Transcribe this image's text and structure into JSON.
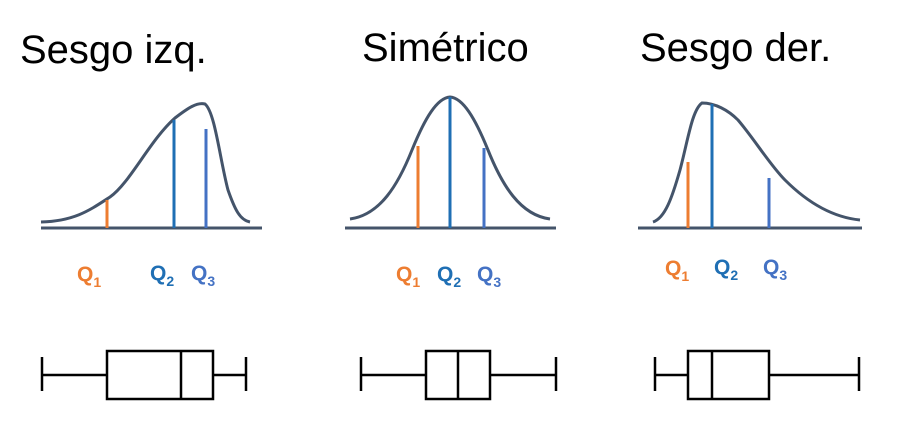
{
  "colors": {
    "curve": "#44546A",
    "q1": "#ED7D31",
    "q2": "#1F6FB4",
    "q3": "#4472C4",
    "box": "#000000"
  },
  "panels": [
    {
      "title": "Sesgo izq.",
      "labels": {
        "q1": "Q",
        "q1_sub": "1",
        "q2": "Q",
        "q2_sub": "2",
        "q3": "Q",
        "q3_sub": "3"
      }
    },
    {
      "title": "Simétrico",
      "labels": {
        "q1": "Q",
        "q1_sub": "1",
        "q2": "Q",
        "q2_sub": "2",
        "q3": "Q",
        "q3_sub": "3"
      }
    },
    {
      "title": "Sesgo der.",
      "labels": {
        "q1": "Q",
        "q1_sub": "1",
        "q2": "Q",
        "q2_sub": "2",
        "q3": "Q",
        "q3_sub": "3"
      }
    }
  ]
}
